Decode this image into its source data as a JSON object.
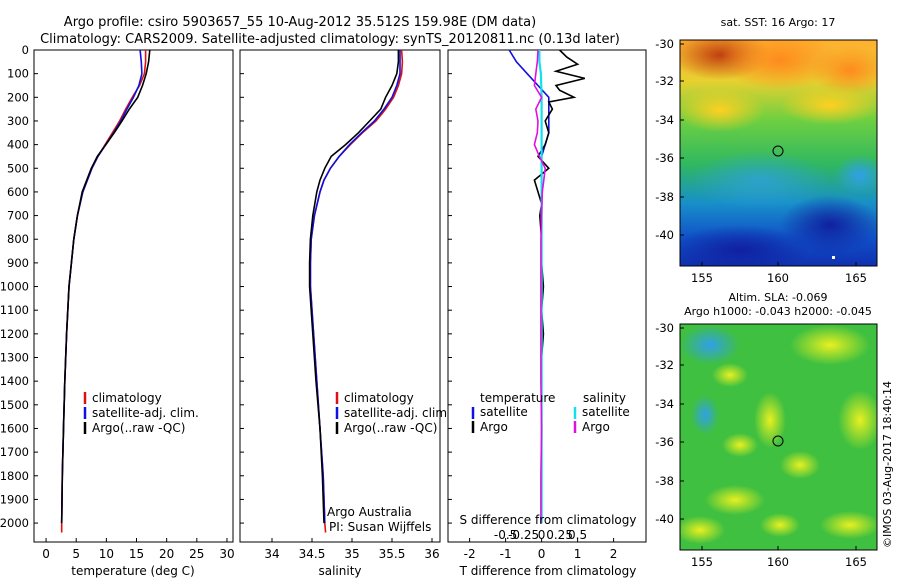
{
  "title_line1": "Argo profile: csiro 5903657_55 10-Aug-2012 35.512S 159.98E (DM data)",
  "title_line2": "Climatology: CARS2009. Satellite-adjusted climatology: synTS_20120811.nc (0.13d later)",
  "colors": {
    "climatology": "#e01010",
    "satellite": "#1010e0",
    "argo": "#000000",
    "sal_satellite": "#10e0f0",
    "sal_argo": "#e010e0"
  },
  "chart_data": [
    {
      "type": "line",
      "name": "temperature",
      "xlabel": "temperature (deg C)",
      "xlim": [
        -2,
        31
      ],
      "xticks": [
        0,
        5,
        10,
        15,
        20,
        25,
        30
      ],
      "ylim": [
        2080,
        0
      ],
      "yticks": [
        0,
        100,
        200,
        300,
        400,
        500,
        600,
        700,
        800,
        900,
        1000,
        1100,
        1200,
        1300,
        1400,
        1500,
        1600,
        1700,
        1800,
        1900,
        2000
      ],
      "legend": [
        "climatology",
        "satellite-adj. clim.",
        "Argo(..raw -QC)"
      ],
      "series": [
        {
          "name": "climatology",
          "depth": [
            0,
            50,
            100,
            150,
            200,
            250,
            300,
            350,
            400,
            450,
            500,
            600,
            700,
            800,
            900,
            1000,
            1200,
            1400,
            1600,
            1800,
            2000,
            2040
          ],
          "values": [
            16.5,
            16.5,
            16.3,
            15.5,
            14.3,
            13.2,
            12.2,
            11.0,
            9.8,
            8.6,
            7.6,
            6.1,
            5.2,
            4.6,
            4.2,
            3.8,
            3.4,
            3.1,
            2.9,
            2.7,
            2.6,
            2.6
          ]
        },
        {
          "name": "satellite",
          "depth": [
            0,
            50,
            100,
            150,
            200,
            250,
            300,
            350,
            400,
            450,
            500,
            600,
            700,
            800,
            900,
            1000,
            1200,
            1400,
            1600,
            1800,
            2000
          ],
          "values": [
            15.6,
            15.8,
            15.9,
            15.4,
            14.5,
            13.4,
            12.4,
            11.2,
            9.9,
            8.6,
            7.6,
            6.1,
            5.2,
            4.6,
            4.2,
            3.8,
            3.4,
            3.1,
            2.9,
            2.7,
            2.6
          ]
        },
        {
          "name": "argo",
          "depth": [
            0,
            50,
            100,
            150,
            200,
            250,
            300,
            350,
            400,
            450,
            500,
            600,
            700,
            800,
            900,
            1000,
            1200,
            1400,
            1600,
            1800,
            2000
          ],
          "values": [
            17.2,
            17.0,
            16.6,
            16.0,
            15.2,
            13.8,
            12.6,
            11.3,
            9.9,
            8.5,
            7.5,
            6.0,
            5.2,
            4.6,
            4.2,
            3.8,
            3.4,
            3.1,
            2.9,
            2.7,
            2.6
          ]
        }
      ]
    },
    {
      "type": "line",
      "name": "salinity",
      "xlabel": "salinity",
      "xlim": [
        33.6,
        36.1
      ],
      "xticks": [
        34,
        34.5,
        35,
        35.5,
        36
      ],
      "ylim": [
        2080,
        0
      ],
      "legend": [
        "climatology",
        "satellite-adj. clim.",
        "Argo(..raw -QC)"
      ],
      "series": [
        {
          "name": "climatology",
          "depth": [
            0,
            50,
            100,
            150,
            200,
            250,
            300,
            350,
            400,
            450,
            500,
            550,
            600,
            700,
            800,
            900,
            1000,
            1200,
            1400,
            1600,
            1800,
            2000,
            2040
          ],
          "values": [
            35.62,
            35.63,
            35.62,
            35.58,
            35.52,
            35.42,
            35.3,
            35.13,
            34.98,
            34.84,
            34.73,
            34.65,
            34.6,
            34.53,
            34.49,
            34.48,
            34.48,
            34.52,
            34.56,
            34.6,
            34.64,
            34.66,
            34.67
          ]
        },
        {
          "name": "satellite",
          "depth": [
            0,
            50,
            100,
            150,
            200,
            250,
            300,
            350,
            400,
            450,
            500,
            550,
            600,
            700,
            800,
            900,
            1000,
            1200,
            1400,
            1600,
            1800,
            2000
          ],
          "values": [
            35.6,
            35.6,
            35.6,
            35.56,
            35.5,
            35.4,
            35.28,
            35.12,
            34.97,
            34.84,
            34.73,
            34.65,
            34.6,
            34.53,
            34.49,
            34.48,
            34.48,
            34.52,
            34.56,
            34.6,
            34.64,
            34.66
          ]
        },
        {
          "name": "argo",
          "depth": [
            0,
            50,
            100,
            150,
            200,
            250,
            300,
            350,
            400,
            450,
            500,
            550,
            600,
            700,
            800,
            900,
            1000,
            1200,
            1400,
            1600,
            1800,
            2000
          ],
          "values": [
            35.58,
            35.58,
            35.56,
            35.5,
            35.42,
            35.36,
            35.22,
            35.08,
            34.92,
            34.74,
            34.66,
            34.6,
            34.56,
            34.51,
            34.48,
            34.47,
            34.47,
            34.51,
            34.55,
            34.6,
            34.63,
            34.65
          ]
        }
      ]
    },
    {
      "type": "line",
      "name": "difference",
      "xlabel": "T difference from climatology",
      "xlabel2": "S difference from climatology",
      "xlim": [
        -2.6,
        2.9
      ],
      "xticks": [
        -2,
        -1,
        0,
        1,
        2
      ],
      "xticks_s": [
        -0.5,
        -0.25,
        0,
        0.25,
        0.5
      ],
      "ylim": [
        2080,
        0
      ],
      "legend_temperature": {
        "title": "temperature",
        "items": [
          "satellite",
          "Argo"
        ]
      },
      "legend_salinity": {
        "title": "salinity",
        "items": [
          "satellite",
          "Argo"
        ]
      },
      "series": [
        {
          "name": "t_satellite",
          "depth": [
            0,
            50,
            100,
            150,
            200,
            250,
            300,
            350,
            400,
            450,
            500,
            600,
            700,
            800,
            900,
            1000,
            1200,
            1400,
            1600,
            1800,
            2000
          ],
          "values": [
            -0.9,
            -0.7,
            -0.4,
            -0.1,
            0.2,
            0.2,
            0.2,
            0.2,
            0.1,
            0.0,
            0.0,
            0.0,
            0.0,
            0.0,
            0.0,
            0.0,
            0.0,
            0.0,
            0.0,
            0.0,
            0.0
          ]
        },
        {
          "name": "t_argo",
          "depth": [
            0,
            30,
            60,
            90,
            120,
            150,
            170,
            200,
            220,
            250,
            300,
            350,
            400,
            450,
            500,
            550,
            600,
            650,
            700,
            800,
            900,
            1000,
            1100,
            1200,
            1300,
            1400,
            1500,
            1600,
            1700,
            1800,
            1900,
            2000
          ],
          "values": [
            0.5,
            0.7,
            1.0,
            0.4,
            1.2,
            0.4,
            0.5,
            0.9,
            0.2,
            0.3,
            0.1,
            0.2,
            0.1,
            -0.1,
            0.2,
            -0.2,
            -0.1,
            0.0,
            -0.05,
            0.0,
            0.0,
            0.05,
            0.0,
            0.05,
            0.0,
            0.0,
            0.0,
            0.0,
            0.0,
            0.0,
            0.0,
            0.0
          ]
        },
        {
          "name": "s_satellite",
          "depth": [
            0,
            50,
            100,
            200,
            300,
            400,
            500,
            600,
            800,
            1000,
            1200,
            1400,
            1600,
            1800,
            2000
          ],
          "values": [
            -0.03,
            -0.03,
            -0.01,
            0.0,
            0.0,
            0.0,
            0.0,
            0.0,
            0.0,
            0.0,
            0.0,
            0.0,
            0.0,
            0.0,
            0.0
          ]
        },
        {
          "name": "s_argo",
          "depth": [
            0,
            50,
            100,
            150,
            200,
            250,
            300,
            350,
            400,
            450,
            500,
            550,
            600,
            700,
            800,
            900,
            1000,
            1200,
            1400,
            1600,
            1800,
            2000
          ],
          "values": [
            -0.05,
            -0.06,
            -0.08,
            -0.1,
            0.0,
            -0.08,
            -0.05,
            -0.06,
            -0.1,
            -0.03,
            0.05,
            0.03,
            0.01,
            0.0,
            -0.01,
            -0.01,
            -0.01,
            -0.01,
            -0.01,
            0.0,
            -0.01,
            -0.01
          ]
        }
      ]
    }
  ],
  "credits": {
    "line1": "Argo Australia",
    "line2": "PI: Susan Wijffels"
  },
  "sst_map": {
    "title": "sat. SST: 16 Argo: 17",
    "xticks": [
      "155",
      "160",
      "165"
    ],
    "yticks": [
      "-30",
      "-32",
      "-34",
      "-36",
      "-38",
      "-40"
    ]
  },
  "sla_map": {
    "title1": "Altim. SLA: -0.069",
    "title2": "Argo h1000: -0.043 h2000: -0.045",
    "xticks": [
      "155",
      "160",
      "165"
    ],
    "yticks": [
      "-30",
      "-32",
      "-34",
      "-36",
      "-38",
      "-40"
    ]
  },
  "stamp": "©IMOS 03-Aug-2017 18:40:14"
}
